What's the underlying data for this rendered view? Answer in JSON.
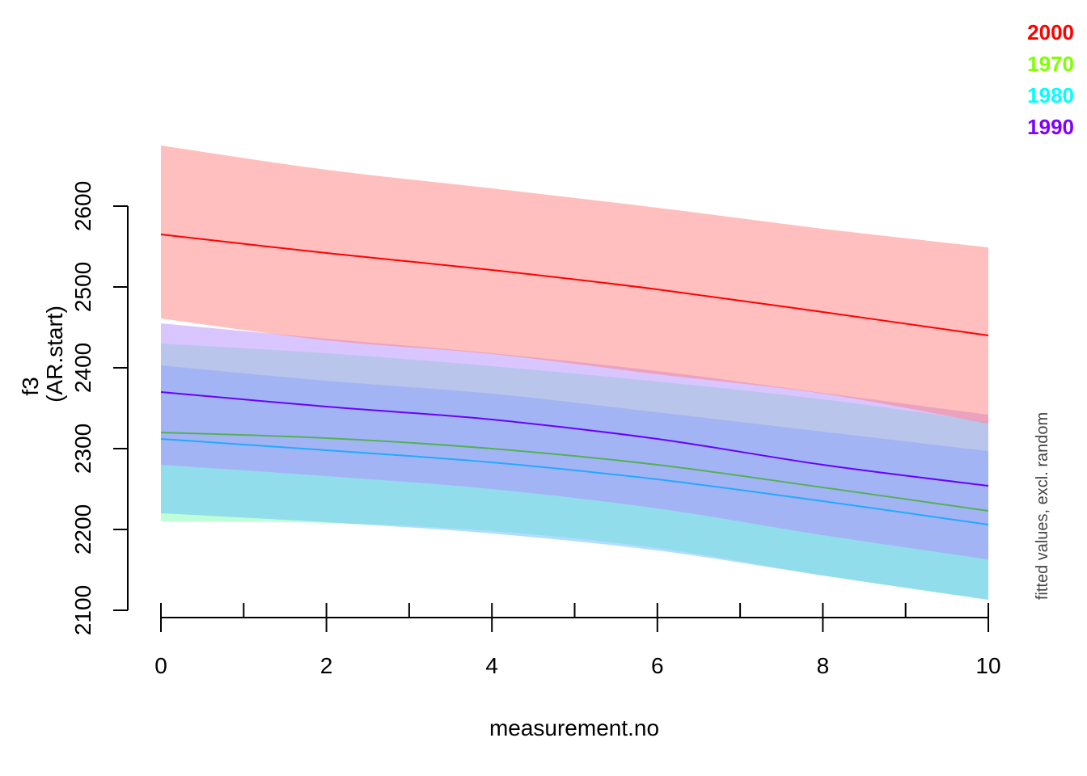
{
  "chart_data": {
    "type": "line",
    "title": "",
    "xlabel": "measurement.no",
    "ylabel_line1": "f3",
    "ylabel_line2": "(AR.start)",
    "side_note": "fitted values, excl. random",
    "xlim": [
      0,
      10
    ],
    "ylim": [
      2100,
      2600
    ],
    "x_ticks_major": [
      0,
      2,
      4,
      6,
      8,
      10
    ],
    "x_ticks_minor": [
      1,
      3,
      5,
      7,
      9
    ],
    "x_tick_labels": [
      "0",
      "2",
      "4",
      "6",
      "8",
      "10"
    ],
    "y_ticks": [
      2100,
      2200,
      2300,
      2400,
      2500,
      2600
    ],
    "y_tick_labels": [
      "2100",
      "2200",
      "2300",
      "2400",
      "2500",
      "2600"
    ],
    "x": [
      0,
      2,
      4,
      6,
      8,
      10
    ],
    "legend": [
      {
        "label": "2000",
        "color": "#FF0000"
      },
      {
        "label": "1970",
        "color": "#80FF00"
      },
      {
        "label": "1980",
        "color": "#00FFFF"
      },
      {
        "label": "1990",
        "color": "#8000FF"
      }
    ],
    "series": [
      {
        "name": "1970",
        "line_color": "#55B055",
        "band_color": "#7FFFB0",
        "fit": [
          2320,
          2313,
          2300,
          2280,
          2252,
          2223
        ],
        "lower": [
          2210,
          2208,
          2198,
          2177,
          2143,
          2113
        ],
        "upper": [
          2430,
          2418,
          2402,
          2383,
          2361,
          2333
        ]
      },
      {
        "name": "1980",
        "line_color": "#22AAFF",
        "band_color": "#66BBFF",
        "fit": [
          2312,
          2298,
          2283,
          2262,
          2235,
          2206
        ],
        "lower": [
          2220,
          2209,
          2195,
          2174,
          2143,
          2113
        ],
        "upper": [
          2403,
          2384,
          2368,
          2345,
          2321,
          2297
        ]
      },
      {
        "name": "1990",
        "line_color": "#6A00FF",
        "band_color": "#B38CFF",
        "fit": [
          2370,
          2352,
          2336,
          2312,
          2280,
          2254
        ],
        "lower": [
          2280,
          2266,
          2250,
          2226,
          2193,
          2163
        ],
        "upper": [
          2455,
          2436,
          2418,
          2396,
          2369,
          2342
        ]
      },
      {
        "name": "2000",
        "line_color": "#FF0000",
        "band_color": "#FF8080",
        "fit": [
          2565,
          2542,
          2521,
          2497,
          2469,
          2440
        ],
        "lower": [
          2461,
          2434,
          2417,
          2392,
          2368,
          2331
        ],
        "upper": [
          2675,
          2645,
          2622,
          2598,
          2572,
          2549
        ]
      }
    ]
  }
}
